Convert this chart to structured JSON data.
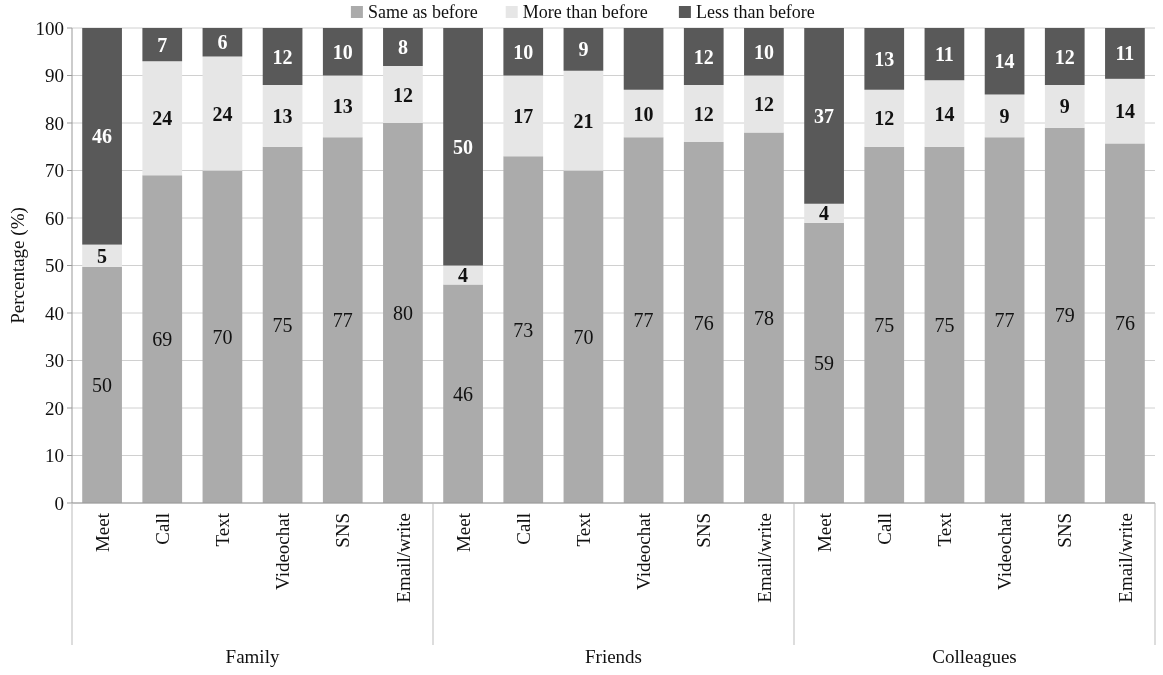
{
  "chart_data": {
    "type": "bar",
    "stacked": true,
    "ylabel": "Percentage (%)",
    "ylim": [
      0,
      100
    ],
    "yticks": [
      0,
      10,
      20,
      30,
      40,
      50,
      60,
      70,
      80,
      90,
      100
    ],
    "grid": "y",
    "legend": "top",
    "categories": [
      "Meet",
      "Call",
      "Text",
      "Videochat",
      "SNS",
      "Email/write",
      "Meet",
      "Call",
      "Text",
      "Videochat",
      "SNS",
      "Email/write",
      "Meet",
      "Call",
      "Text",
      "Videochat",
      "SNS",
      "Email/write"
    ],
    "annotations": [
      "Family",
      "Friends",
      "Colleagues"
    ],
    "series": [
      {
        "name": "Same as before",
        "color": "#ababab",
        "values": [
          49.7,
          69,
          70,
          75,
          77,
          80,
          46,
          73,
          70,
          77,
          76,
          78,
          59,
          75,
          75,
          77,
          79,
          75.7
        ],
        "value_labels": [
          "50",
          "69",
          "70",
          "75",
          "77",
          "80",
          "46",
          "73",
          "70",
          "77",
          "76",
          "78",
          "59",
          "75",
          "75",
          "77",
          "79",
          "76"
        ]
      },
      {
        "name": "More than before",
        "color": "#e6e6e6",
        "values": [
          4.7,
          24,
          24,
          13,
          13,
          12,
          4,
          17,
          21,
          10,
          12,
          12,
          4,
          12,
          14,
          9,
          9,
          13.6
        ],
        "value_labels": [
          "5",
          "24",
          "24",
          "13",
          "13",
          "12",
          "4",
          "17",
          "21",
          "10",
          "12",
          "12",
          "4",
          "12",
          "14",
          "9",
          "9",
          "14"
        ]
      },
      {
        "name": "Less than before",
        "color": "#595959",
        "values": [
          45.6,
          7,
          6,
          12,
          10,
          8,
          50,
          10,
          9,
          13,
          12,
          10,
          37,
          13,
          11,
          14,
          12,
          10.7
        ],
        "value_labels": [
          "46",
          "7",
          "6",
          "12",
          "10",
          "8",
          "50",
          "10",
          "9",
          null,
          "12",
          "10",
          "37",
          "13",
          "11",
          "14",
          "12",
          "11"
        ]
      }
    ]
  }
}
